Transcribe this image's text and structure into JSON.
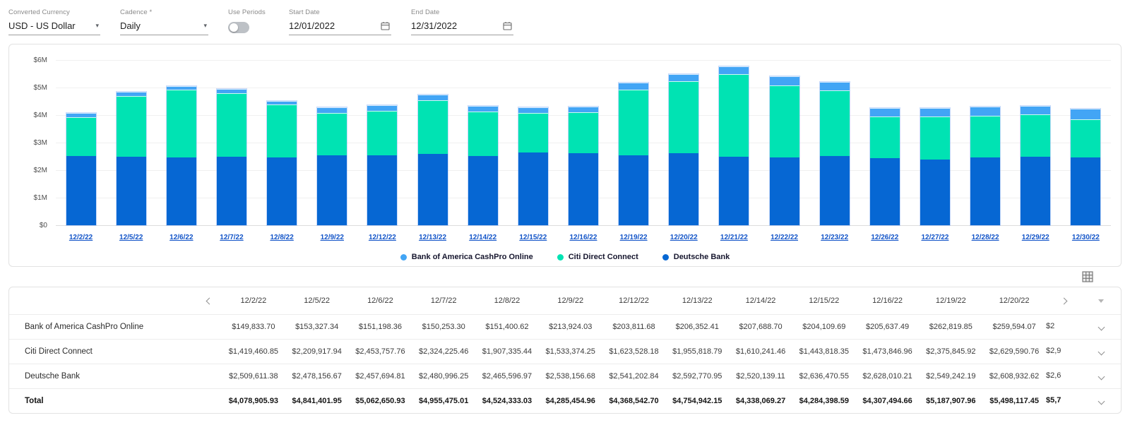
{
  "controls": {
    "converted_currency": {
      "label": "Converted Currency",
      "value": "USD - US Dollar"
    },
    "cadence": {
      "label": "Cadence *",
      "value": "Daily"
    },
    "use_periods": {
      "label": "Use Periods",
      "enabled": false
    },
    "start_date": {
      "label": "Start Date",
      "value": "12/01/2022"
    },
    "end_date": {
      "label": "End Date",
      "value": "12/31/2022"
    }
  },
  "chart_data": {
    "type": "bar",
    "stacked": true,
    "categories": [
      "12/2/22",
      "12/5/22",
      "12/6/22",
      "12/7/22",
      "12/8/22",
      "12/9/22",
      "12/12/22",
      "12/13/22",
      "12/14/22",
      "12/15/22",
      "12/16/22",
      "12/19/22",
      "12/20/22",
      "12/21/22",
      "12/22/22",
      "12/23/22",
      "12/26/22",
      "12/27/22",
      "12/28/22",
      "12/29/22",
      "12/30/22"
    ],
    "series": [
      {
        "name": "Bank of America CashPro Online",
        "color": "#42A5F5",
        "values": [
          149833.7,
          153327.34,
          151198.36,
          150253.3,
          151400.62,
          213924.03,
          203811.68,
          206352.41,
          207688.7,
          204109.69,
          205637.49,
          262819.85,
          259594.07,
          290000,
          330000,
          300000,
          320000,
          330000,
          340000,
          320000,
          370000
        ]
      },
      {
        "name": "Citi Direct Connect",
        "color": "#00E3B3",
        "values": [
          1419460.85,
          2209917.94,
          2453757.76,
          2324225.46,
          1907335.44,
          1533374.25,
          1623528.18,
          1955818.79,
          1610241.46,
          1443818.35,
          1473846.96,
          2375845.92,
          2629590.76,
          3000000,
          2610000,
          2380000,
          1500000,
          1550000,
          1510000,
          1530000,
          1400000
        ]
      },
      {
        "name": "Deutsche Bank",
        "color": "#0667D3",
        "values": [
          2509611.38,
          2478156.67,
          2457694.81,
          2480996.25,
          2465596.97,
          2538156.68,
          2541202.84,
          2592770.95,
          2520139.11,
          2636470.55,
          2628010.21,
          2549242.19,
          2608932.62,
          2490000,
          2460000,
          2520000,
          2440000,
          2390000,
          2470000,
          2490000,
          2450000
        ]
      }
    ],
    "y_ticks": [
      "$6M",
      "$5M",
      "$4M",
      "$3M",
      "$2M",
      "$1M",
      "$0"
    ],
    "ylim": [
      0,
      6000000
    ],
    "grid": true,
    "legend_position": "bottom"
  },
  "table": {
    "columns": [
      "12/2/22",
      "12/5/22",
      "12/6/22",
      "12/7/22",
      "12/8/22",
      "12/9/22",
      "12/12/22",
      "12/13/22",
      "12/14/22",
      "12/15/22",
      "12/16/22",
      "12/19/22",
      "12/20/22"
    ],
    "rows": [
      {
        "label": "Bank of America CashPro Online",
        "bold": false,
        "partial": "$2",
        "values": [
          "$149,833.70",
          "$153,327.34",
          "$151,198.36",
          "$150,253.30",
          "$151,400.62",
          "$213,924.03",
          "$203,811.68",
          "$206,352.41",
          "$207,688.70",
          "$204,109.69",
          "$205,637.49",
          "$262,819.85",
          "$259,594.07"
        ]
      },
      {
        "label": "Citi Direct Connect",
        "bold": false,
        "partial": "$2,9",
        "values": [
          "$1,419,460.85",
          "$2,209,917.94",
          "$2,453,757.76",
          "$2,324,225.46",
          "$1,907,335.44",
          "$1,533,374.25",
          "$1,623,528.18",
          "$1,955,818.79",
          "$1,610,241.46",
          "$1,443,818.35",
          "$1,473,846.96",
          "$2,375,845.92",
          "$2,629,590.76"
        ]
      },
      {
        "label": "Deutsche Bank",
        "bold": false,
        "partial": "$2,6",
        "values": [
          "$2,509,611.38",
          "$2,478,156.67",
          "$2,457,694.81",
          "$2,480,996.25",
          "$2,465,596.97",
          "$2,538,156.68",
          "$2,541,202.84",
          "$2,592,770.95",
          "$2,520,139.11",
          "$2,636,470.55",
          "$2,628,010.21",
          "$2,549,242.19",
          "$2,608,932.62"
        ]
      },
      {
        "label": "Total",
        "bold": true,
        "partial": "$5,7",
        "values": [
          "$4,078,905.93",
          "$4,841,401.95",
          "$5,062,650.93",
          "$4,955,475.01",
          "$4,524,333.03",
          "$4,285,454.96",
          "$4,368,542.70",
          "$4,754,942.15",
          "$4,338,069.27",
          "$4,284,398.59",
          "$4,307,494.66",
          "$5,187,907.96",
          "$5,498,117.45"
        ]
      }
    ]
  }
}
